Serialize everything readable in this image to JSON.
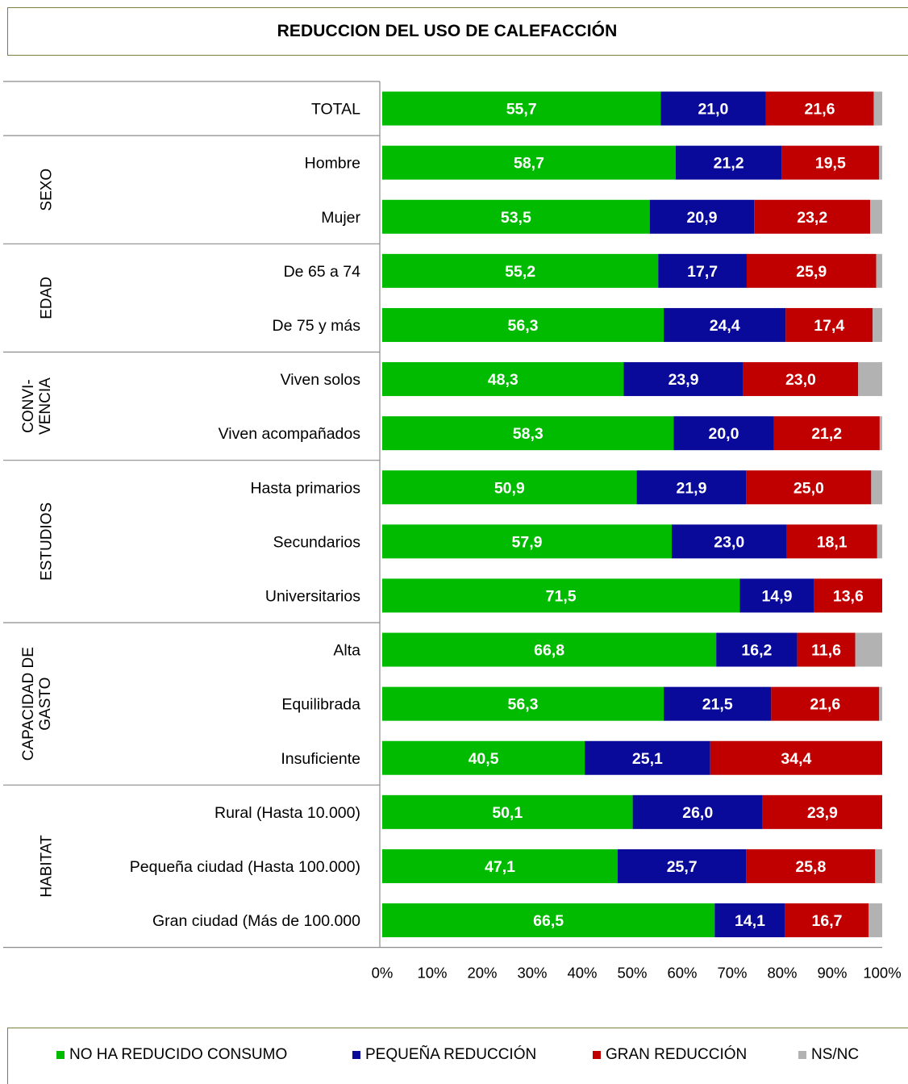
{
  "chart_data": {
    "type": "bar",
    "orientation": "horizontal",
    "stacked": true,
    "title": "REDUCCION DEL USO DE CALEFACCIÓN",
    "categories": [
      "TOTAL",
      "Hombre",
      "Mujer",
      "De 65 a 74",
      "De 75 y más",
      "Viven solos",
      "Viven acompañados",
      "Hasta primarios",
      "Secundarios",
      "Universitarios",
      "Alta",
      "Equilibrada",
      "Insuficiente",
      "Rural (Hasta 10.000)",
      "Pequeña ciudad (Hasta 100.000)",
      "Gran ciudad (Más de 100.000"
    ],
    "groups": [
      {
        "label": "",
        "start": 0,
        "count": 1
      },
      {
        "label": "SEXO",
        "start": 1,
        "count": 2
      },
      {
        "label": "EDAD",
        "start": 3,
        "count": 2
      },
      {
        "label": "CONVI-\nVENCIA",
        "start": 5,
        "count": 2
      },
      {
        "label": "ESTUDIOS",
        "start": 7,
        "count": 3
      },
      {
        "label": "CAPACIDAD DE\nGASTO",
        "start": 10,
        "count": 3
      },
      {
        "label": "HABITAT",
        "start": 13,
        "count": 3
      }
    ],
    "series": [
      {
        "name": "NO HA REDUCIDO CONSUMO",
        "color": "#00bb00",
        "values": [
          55.7,
          58.7,
          53.5,
          55.2,
          56.3,
          48.3,
          58.3,
          50.9,
          57.9,
          71.5,
          66.8,
          56.3,
          40.5,
          50.1,
          47.1,
          66.5
        ]
      },
      {
        "name": "PEQUEÑA REDUCCIÓN",
        "color": "#0a0a9a",
        "values": [
          21.0,
          21.2,
          20.9,
          17.7,
          24.4,
          23.9,
          20.0,
          21.9,
          23.0,
          14.9,
          16.2,
          21.5,
          25.1,
          26.0,
          25.7,
          14.1
        ]
      },
      {
        "name": "GRAN REDUCCIÓN",
        "color": "#c00000",
        "values": [
          21.6,
          19.5,
          23.2,
          25.9,
          17.4,
          23.0,
          21.2,
          25.0,
          18.1,
          13.6,
          11.6,
          21.6,
          34.4,
          23.9,
          25.8,
          16.7
        ]
      },
      {
        "name": "NS/NC",
        "color": "#b2b2b2",
        "values": [
          1.7,
          0.6,
          2.4,
          1.2,
          1.9,
          4.8,
          0.5,
          2.2,
          1.0,
          0.0,
          5.4,
          0.6,
          0.0,
          0.0,
          1.4,
          2.7
        ]
      }
    ],
    "value_labels": [
      [
        "55,7",
        "21,0",
        "21,6"
      ],
      [
        "58,7",
        "21,2",
        "19,5"
      ],
      [
        "53,5",
        "20,9",
        "23,2"
      ],
      [
        "55,2",
        "17,7",
        "25,9"
      ],
      [
        "56,3",
        "24,4",
        "17,4"
      ],
      [
        "48,3",
        "23,9",
        "23,0"
      ],
      [
        "58,3",
        "20,0",
        "21,2"
      ],
      [
        "50,9",
        "21,9",
        "25,0"
      ],
      [
        "57,9",
        "23,0",
        "18,1"
      ],
      [
        "71,5",
        "14,9",
        "13,6"
      ],
      [
        "66,8",
        "16,2",
        "11,6"
      ],
      [
        "56,3",
        "21,5",
        "21,6"
      ],
      [
        "40,5",
        "25,1",
        "34,4"
      ],
      [
        "50,1",
        "26,0",
        "23,9"
      ],
      [
        "47,1",
        "25,7",
        "25,8"
      ],
      [
        "66,5",
        "14,1",
        "16,7"
      ]
    ],
    "xticks": [
      "0%",
      "10%",
      "20%",
      "30%",
      "40%",
      "50%",
      "60%",
      "70%",
      "80%",
      "90%",
      "100%"
    ],
    "xlim": [
      0,
      100
    ],
    "grid": false,
    "legend_position": "bottom"
  }
}
